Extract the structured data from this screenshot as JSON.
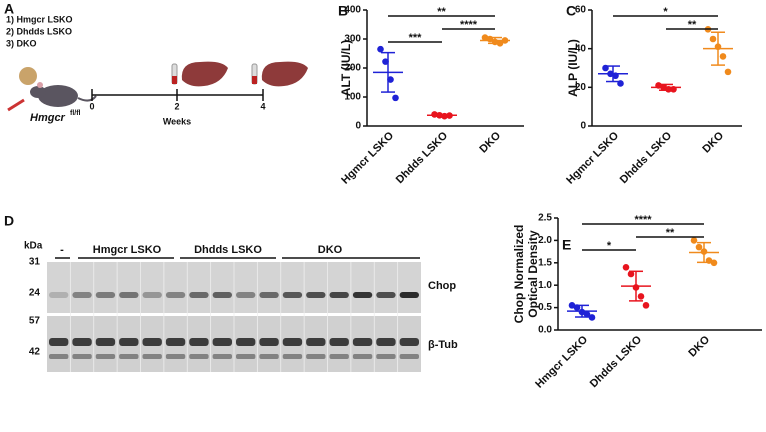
{
  "panel_labels": [
    "A",
    "B",
    "C",
    "D",
    "E"
  ],
  "diagram": {
    "genotypes": [
      "1) Hmgcr LSKO",
      "2) Dhdds LSKO",
      "3) DKO"
    ],
    "mouse": "Hmgcr",
    "mouse_sup": "fl/fl",
    "timeline_ticks": [
      "0",
      "2",
      "4"
    ],
    "timeline_label": "Weeks"
  },
  "blot": {
    "unit": "kDa",
    "markers": [
      "31",
      "24",
      "57",
      "42"
    ],
    "groups": [
      "-",
      "Hmgcr LSKO",
      "Dhdds LSKO",
      "DKO"
    ],
    "bands": [
      "Chop",
      "β-Tub"
    ]
  },
  "chart_data": [
    {
      "type": "strip",
      "ylabel": [
        "ALT (IU/L)"
      ],
      "ylim": [
        0,
        400
      ],
      "yticks": [
        0,
        100,
        200,
        300,
        400
      ],
      "groups": [
        {
          "name": "Hgmcr LSKO",
          "color": "#1f22d6",
          "values": [
            265,
            222,
            160,
            97
          ],
          "mean": 185,
          "sd": 68
        },
        {
          "name": "Dhdds LSKO",
          "color": "#e8141e",
          "values": [
            40,
            37,
            34,
            36
          ],
          "mean": 37,
          "sd": 3
        },
        {
          "name": "DKO",
          "color": "#f08a1c",
          "values": [
            305,
            300,
            290,
            285,
            295
          ],
          "mean": 295,
          "sd": 10
        }
      ],
      "sig": [
        {
          "label": "**",
          "between": [
            "Hgmcr LSKO",
            "DKO"
          ]
        },
        {
          "label": "****",
          "between": [
            "Dhdds LSKO",
            "DKO"
          ]
        },
        {
          "label": "***",
          "between": [
            "Hgmcr LSKO",
            "Dhdds LSKO"
          ]
        }
      ]
    },
    {
      "type": "strip",
      "ylabel": [
        "ALP (IU/L)"
      ],
      "ylim": [
        0,
        60
      ],
      "yticks": [
        0,
        20,
        40,
        60
      ],
      "groups": [
        {
          "name": "Hgmcr LSKO",
          "color": "#1f22d6",
          "values": [
            30,
            27,
            26,
            22
          ],
          "mean": 27,
          "sd": 4
        },
        {
          "name": "Dhdds LSKO",
          "color": "#e8141e",
          "values": [
            21,
            20,
            19,
            19
          ],
          "mean": 20,
          "sd": 1.5
        },
        {
          "name": "DKO",
          "color": "#f08a1c",
          "values": [
            50,
            45,
            41,
            36,
            28
          ],
          "mean": 40,
          "sd": 8.5
        }
      ],
      "sig": [
        {
          "label": "*",
          "between": [
            "Hgmcr LSKO",
            "DKO"
          ]
        },
        {
          "label": "**",
          "between": [
            "Dhdds LSKO",
            "DKO"
          ]
        }
      ]
    },
    {
      "type": "strip",
      "ylabel": [
        "Chop Normalized",
        "Optical Density"
      ],
      "ylim": [
        0,
        2.5
      ],
      "yticks": [
        {
          "value": 0,
          "label": "0.0"
        },
        {
          "value": 0.5,
          "label": "0.5"
        },
        {
          "value": 1,
          "label": "1.0"
        },
        {
          "value": 1.5,
          "label": "1.5"
        },
        {
          "value": 2,
          "label": "2.0"
        },
        {
          "value": 2.5,
          "label": "2.5"
        }
      ],
      "groups": [
        {
          "name": "Hmgcr LSKO",
          "color": "#1f22d6",
          "values": [
            0.55,
            0.5,
            0.4,
            0.35,
            0.28
          ],
          "mean": 0.42,
          "sd": 0.13
        },
        {
          "name": "Dhdds LSKO",
          "color": "#e8141e",
          "values": [
            1.4,
            1.25,
            0.95,
            0.75,
            0.55
          ],
          "mean": 0.98,
          "sd": 0.33
        },
        {
          "name": "DKO",
          "color": "#f08a1c",
          "values": [
            2.0,
            1.85,
            1.75,
            1.55,
            1.5
          ],
          "mean": 1.73,
          "sd": 0.22
        }
      ],
      "sig": [
        {
          "label": "****",
          "between": [
            "Hmgcr LSKO",
            "DKO"
          ]
        },
        {
          "label": "**",
          "between": [
            "Dhdds LSKO",
            "DKO"
          ]
        },
        {
          "label": "*",
          "between": [
            "Hmgcr LSKO",
            "Dhdds LSKO"
          ]
        }
      ]
    }
  ]
}
